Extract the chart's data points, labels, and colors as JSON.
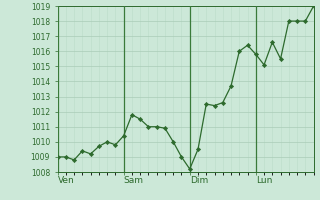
{
  "x_values": [
    0,
    1,
    2,
    3,
    4,
    5,
    6,
    7,
    8,
    9,
    10,
    11,
    12,
    13,
    14,
    15,
    16,
    17,
    18,
    19,
    20,
    21,
    22,
    23,
    24,
    25,
    26,
    27,
    28,
    29,
    30,
    31
  ],
  "y_values": [
    1009,
    1009,
    1008.8,
    1009.4,
    1009.2,
    1009.7,
    1010,
    1009.8,
    1010.4,
    1011.8,
    1011.5,
    1011.0,
    1011.0,
    1010.9,
    1010.0,
    1009.0,
    1008.2,
    1009.5,
    1012.5,
    1012.4,
    1012.6,
    1013.7,
    1016.0,
    1016.4,
    1015.8,
    1015.1,
    1016.6,
    1015.5,
    1018.0,
    1018.0,
    1018.0,
    1019.0
  ],
  "day_ticks": [
    0,
    8,
    16,
    24
  ],
  "day_labels": [
    "Ven",
    "Sam",
    "Dim",
    "Lun"
  ],
  "ylim": [
    1008,
    1019
  ],
  "yticks": [
    1008,
    1009,
    1010,
    1011,
    1012,
    1013,
    1014,
    1015,
    1016,
    1017,
    1018,
    1019
  ],
  "xlim": [
    0,
    31
  ],
  "line_color": "#2d6a2d",
  "marker_color": "#2d6a2d",
  "bg_color": "#cce8d8",
  "grid_color": "#aaccb8",
  "grid_color_minor": "#bbddc8",
  "axis_color": "#2d6a2d",
  "tick_label_color": "#2d6a2d",
  "ytick_fontsize": 5.5,
  "xtick_fontsize": 6.5
}
